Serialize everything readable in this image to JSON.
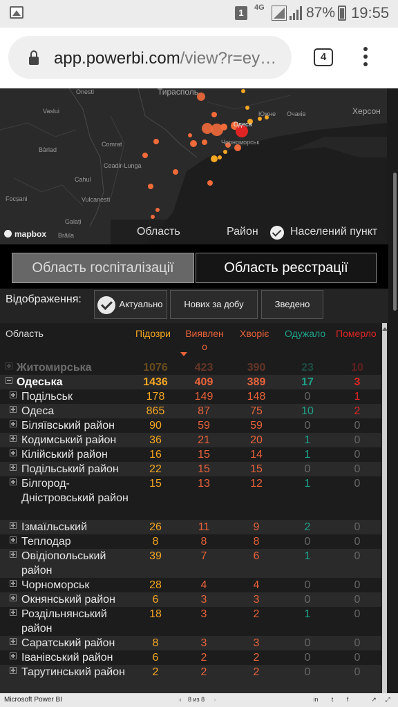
{
  "status_bar": {
    "sim_label": "1",
    "network": "4G",
    "battery": "87%",
    "time": "19:55"
  },
  "browser": {
    "url_host": "app.powerbi.com",
    "url_rest": "/view?r=ey…",
    "tab_count": "4"
  },
  "map": {
    "cities": [
      "Onesti",
      "Тирасполь",
      "Vaslui",
      "Южне",
      "Очаків",
      "Херсон",
      "Одеса",
      "Bârlad",
      "Comrat",
      "Чорноморськ",
      "Ceadir-Lunga",
      "Cahul",
      "Focșani",
      "Vulcanesti",
      "Galați",
      "Brăila"
    ],
    "filter_options": [
      "Область",
      "Район",
      "Населений пункт"
    ],
    "logo": "mapbox"
  },
  "toggles": {
    "hospitalization": "Область госпіталізації",
    "registration": "Область реєстрації"
  },
  "display": {
    "label": "Відображення:",
    "modes": [
      "Актуально",
      "Нових за добу",
      "Зведено"
    ]
  },
  "table": {
    "headers": {
      "region": "Область",
      "suspected": "Підозри",
      "detected": "Виявлен о",
      "sick": "Хворіє",
      "recovered": "Одужало",
      "dead": "Померло"
    },
    "rows": [
      {
        "name": "Житомирська",
        "values": [
          "1076",
          "423",
          "390",
          "23",
          "10"
        ]
      },
      {
        "name": "Одеська",
        "values": [
          "1436",
          "409",
          "389",
          "17",
          "3"
        ]
      },
      {
        "name": "Подільськ",
        "values": [
          "178",
          "149",
          "148",
          "0",
          "1"
        ]
      },
      {
        "name": "Одеса",
        "values": [
          "865",
          "87",
          "75",
          "10",
          "2"
        ]
      },
      {
        "name": "Біляївський район",
        "values": [
          "90",
          "59",
          "59",
          "0",
          "0"
        ]
      },
      {
        "name": "Кодимський район",
        "values": [
          "36",
          "21",
          "20",
          "1",
          "0"
        ]
      },
      {
        "name": "Кілійський район",
        "values": [
          "16",
          "15",
          "14",
          "1",
          "0"
        ]
      },
      {
        "name": "Подільський район",
        "values": [
          "22",
          "15",
          "15",
          "0",
          "0"
        ]
      },
      {
        "name": "Білгород-Дністровський район",
        "values": [
          "15",
          "13",
          "12",
          "1",
          "0"
        ]
      },
      {
        "name": "Ізмаїльський",
        "values": [
          "26",
          "11",
          "9",
          "2",
          "0"
        ]
      },
      {
        "name": "Теплодар",
        "values": [
          "8",
          "8",
          "8",
          "0",
          "0"
        ]
      },
      {
        "name": "Овідіопольський район",
        "values": [
          "39",
          "7",
          "6",
          "1",
          "0"
        ]
      },
      {
        "name": "Чорноморськ",
        "values": [
          "28",
          "4",
          "4",
          "0",
          "0"
        ]
      },
      {
        "name": "Окнянський район",
        "values": [
          "6",
          "3",
          "3",
          "0",
          "0"
        ]
      },
      {
        "name": "Роздільнянський район",
        "values": [
          "18",
          "3",
          "2",
          "1",
          "0"
        ]
      },
      {
        "name": "Саратський район",
        "values": [
          "8",
          "3",
          "3",
          "0",
          "0"
        ]
      },
      {
        "name": "Іванівський район",
        "values": [
          "6",
          "2",
          "2",
          "0",
          "0"
        ]
      },
      {
        "name": "Тарутинський район",
        "values": [
          "2",
          "2",
          "2",
          "0",
          "0"
        ]
      }
    ]
  },
  "footer": {
    "brand": "Microsoft Power BI",
    "pager": "8 из 8"
  },
  "colors": {
    "suspected": "#f5a623",
    "detected": "#e8623a",
    "recovered": "#1ea38a",
    "dead": "#e02424"
  }
}
